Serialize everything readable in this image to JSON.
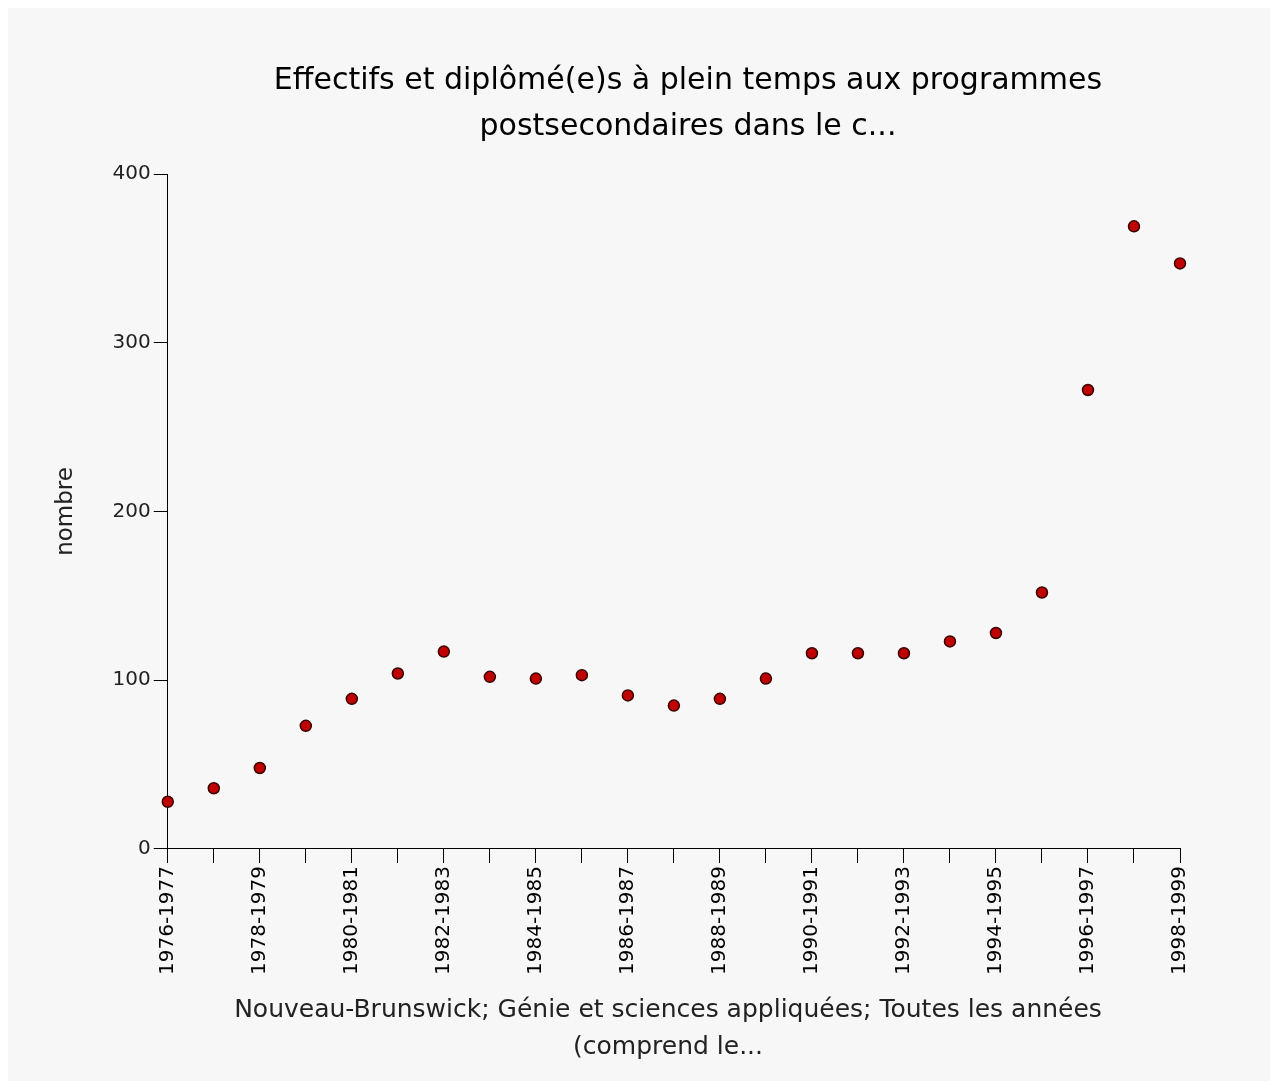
{
  "chart_data": {
    "type": "scatter",
    "title": "Effectifs et diplômé(e)s à plein temps aux programmes postsecondaires dans le c...",
    "xlabel": "Nouveau-Brunswick; Génie et sciences appliquées; Toutes les années (comprend le...",
    "ylabel": "nombre",
    "categories": [
      "1976-1977",
      null,
      "1978-1979",
      null,
      "1980-1981",
      null,
      "1982-1983",
      null,
      "1984-1985",
      null,
      "1986-1987",
      null,
      "1988-1989",
      null,
      "1990-1991",
      null,
      "1992-1993",
      null,
      "1994-1995",
      null,
      "1996-1997",
      null,
      "1998-1999"
    ],
    "series": [
      {
        "color": "#c00000",
        "values": [
          28,
          36,
          48,
          73,
          89,
          104,
          117,
          102,
          101,
          103,
          91,
          85,
          89,
          101,
          116,
          116,
          116,
          123,
          128,
          152,
          272,
          369,
          347
        ]
      }
    ],
    "ylim": [
      0,
      400
    ],
    "yticks": [
      0,
      100,
      200,
      300,
      400
    ],
    "grid": false,
    "legend": false,
    "marker": "circle"
  }
}
